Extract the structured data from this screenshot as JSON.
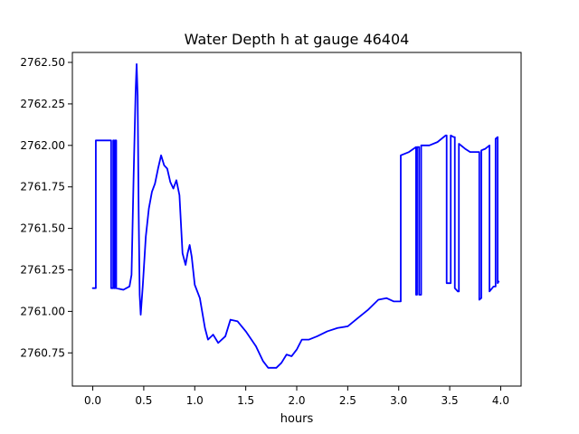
{
  "chart_data": {
    "type": "line",
    "title": "Water Depth h at gauge 46404",
    "xlabel": "hours",
    "ylabel": "",
    "xlim": [
      -0.2,
      4.2
    ],
    "ylim": [
      2760.55,
      2762.56
    ],
    "xticks": [
      0.0,
      0.5,
      1.0,
      1.5,
      2.0,
      2.5,
      3.0,
      3.5,
      4.0
    ],
    "xtick_labels": [
      "0.0",
      "0.5",
      "1.0",
      "1.5",
      "2.0",
      "2.5",
      "3.0",
      "3.5",
      "4.0"
    ],
    "yticks": [
      2760.75,
      2761.0,
      2761.25,
      2761.5,
      2761.75,
      2762.0,
      2762.25,
      2762.5
    ],
    "ytick_labels": [
      "2760.75",
      "2761.00",
      "2761.25",
      "2761.50",
      "2761.75",
      "2762.00",
      "2762.25",
      "2762.50"
    ],
    "grid": false,
    "series": [
      {
        "color": "#0000ff",
        "points": [
          [
            0.0,
            2761.14
          ],
          [
            0.03,
            2761.14
          ],
          [
            0.03,
            2762.03
          ],
          [
            0.18,
            2762.03
          ],
          [
            0.18,
            2761.14
          ],
          [
            0.2,
            2761.14
          ],
          [
            0.2,
            2762.03
          ],
          [
            0.21,
            2762.03
          ],
          [
            0.21,
            2761.14
          ],
          [
            0.22,
            2761.14
          ],
          [
            0.22,
            2762.03
          ],
          [
            0.23,
            2762.03
          ],
          [
            0.23,
            2761.14
          ],
          [
            0.3,
            2761.13
          ],
          [
            0.36,
            2761.15
          ],
          [
            0.38,
            2761.22
          ],
          [
            0.4,
            2761.8
          ],
          [
            0.42,
            2762.32
          ],
          [
            0.43,
            2762.49
          ],
          [
            0.44,
            2762.3
          ],
          [
            0.45,
            2761.6
          ],
          [
            0.46,
            2761.1
          ],
          [
            0.47,
            2760.98
          ],
          [
            0.49,
            2761.15
          ],
          [
            0.52,
            2761.45
          ],
          [
            0.55,
            2761.62
          ],
          [
            0.58,
            2761.72
          ],
          [
            0.61,
            2761.77
          ],
          [
            0.64,
            2761.86
          ],
          [
            0.67,
            2761.94
          ],
          [
            0.7,
            2761.88
          ],
          [
            0.73,
            2761.86
          ],
          [
            0.76,
            2761.78
          ],
          [
            0.79,
            2761.74
          ],
          [
            0.82,
            2761.79
          ],
          [
            0.85,
            2761.7
          ],
          [
            0.88,
            2761.35
          ],
          [
            0.91,
            2761.28
          ],
          [
            0.93,
            2761.35
          ],
          [
            0.95,
            2761.4
          ],
          [
            0.97,
            2761.33
          ],
          [
            1.0,
            2761.16
          ],
          [
            1.05,
            2761.08
          ],
          [
            1.1,
            2760.9
          ],
          [
            1.13,
            2760.83
          ],
          [
            1.18,
            2760.86
          ],
          [
            1.23,
            2760.81
          ],
          [
            1.3,
            2760.85
          ],
          [
            1.35,
            2760.95
          ],
          [
            1.42,
            2760.94
          ],
          [
            1.5,
            2760.88
          ],
          [
            1.6,
            2760.79
          ],
          [
            1.67,
            2760.7
          ],
          [
            1.72,
            2760.66
          ],
          [
            1.8,
            2760.66
          ],
          [
            1.85,
            2760.69
          ],
          [
            1.9,
            2760.74
          ],
          [
            1.95,
            2760.73
          ],
          [
            2.0,
            2760.77
          ],
          [
            2.05,
            2760.83
          ],
          [
            2.12,
            2760.83
          ],
          [
            2.2,
            2760.85
          ],
          [
            2.3,
            2760.88
          ],
          [
            2.4,
            2760.9
          ],
          [
            2.5,
            2760.91
          ],
          [
            2.6,
            2760.96
          ],
          [
            2.7,
            2761.01
          ],
          [
            2.8,
            2761.07
          ],
          [
            2.88,
            2761.08
          ],
          [
            2.95,
            2761.06
          ],
          [
            3.02,
            2761.06
          ],
          [
            3.02,
            2761.94
          ],
          [
            3.1,
            2761.96
          ],
          [
            3.17,
            2761.99
          ],
          [
            3.17,
            2761.1
          ],
          [
            3.18,
            2761.1
          ],
          [
            3.18,
            2761.99
          ],
          [
            3.2,
            2761.99
          ],
          [
            3.2,
            2761.1
          ],
          [
            3.22,
            2761.1
          ],
          [
            3.22,
            2762.0
          ],
          [
            3.3,
            2762.0
          ],
          [
            3.38,
            2762.02
          ],
          [
            3.46,
            2762.06
          ],
          [
            3.47,
            2762.06
          ],
          [
            3.47,
            2761.17
          ],
          [
            3.51,
            2761.17
          ],
          [
            3.51,
            2762.06
          ],
          [
            3.54,
            2762.05
          ],
          [
            3.55,
            2762.05
          ],
          [
            3.55,
            2761.14
          ],
          [
            3.58,
            2761.12
          ],
          [
            3.59,
            2761.12
          ],
          [
            3.59,
            2762.01
          ],
          [
            3.65,
            2761.98
          ],
          [
            3.7,
            2761.96
          ],
          [
            3.79,
            2761.96
          ],
          [
            3.79,
            2761.07
          ],
          [
            3.81,
            2761.08
          ],
          [
            3.81,
            2761.97
          ],
          [
            3.85,
            2761.98
          ],
          [
            3.89,
            2762.0
          ],
          [
            3.89,
            2761.12
          ],
          [
            3.93,
            2761.15
          ],
          [
            3.95,
            2761.15
          ],
          [
            3.95,
            2762.04
          ],
          [
            3.97,
            2762.05
          ],
          [
            3.97,
            2761.17
          ],
          [
            3.98,
            2761.18
          ]
        ]
      }
    ]
  }
}
